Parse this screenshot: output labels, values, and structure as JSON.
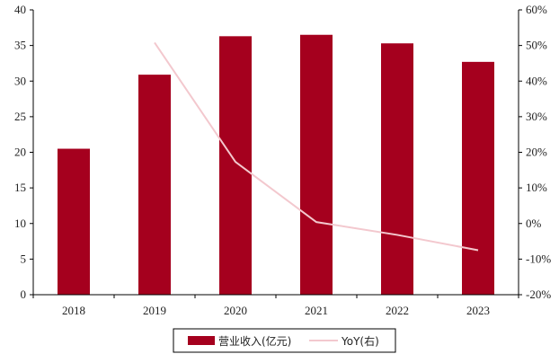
{
  "chart_data": {
    "type": "bar",
    "categories": [
      "2018",
      "2019",
      "2020",
      "2021",
      "2022",
      "2023"
    ],
    "series": [
      {
        "name": "营业收入(亿元)",
        "type": "bar",
        "axis": "left",
        "color": "#a5001e",
        "values": [
          20.5,
          30.9,
          36.3,
          36.5,
          35.3,
          32.7
        ]
      },
      {
        "name": "YoY(右)",
        "type": "line",
        "axis": "right",
        "color": "#f3c8ce",
        "values": [
          null,
          50.8,
          17.3,
          0.4,
          -3.2,
          -7.5
        ]
      }
    ],
    "y_left": {
      "lim": [
        0,
        40
      ],
      "ticks": [
        "0",
        "5",
        "10",
        "15",
        "20",
        "25",
        "30",
        "35",
        "40"
      ]
    },
    "y_right": {
      "lim": [
        -20,
        60
      ],
      "ticks": [
        "-20%",
        "-10%",
        "0%",
        "10%",
        "20%",
        "30%",
        "40%",
        "50%",
        "60%"
      ]
    },
    "grid": false,
    "legend_position": "bottom"
  }
}
